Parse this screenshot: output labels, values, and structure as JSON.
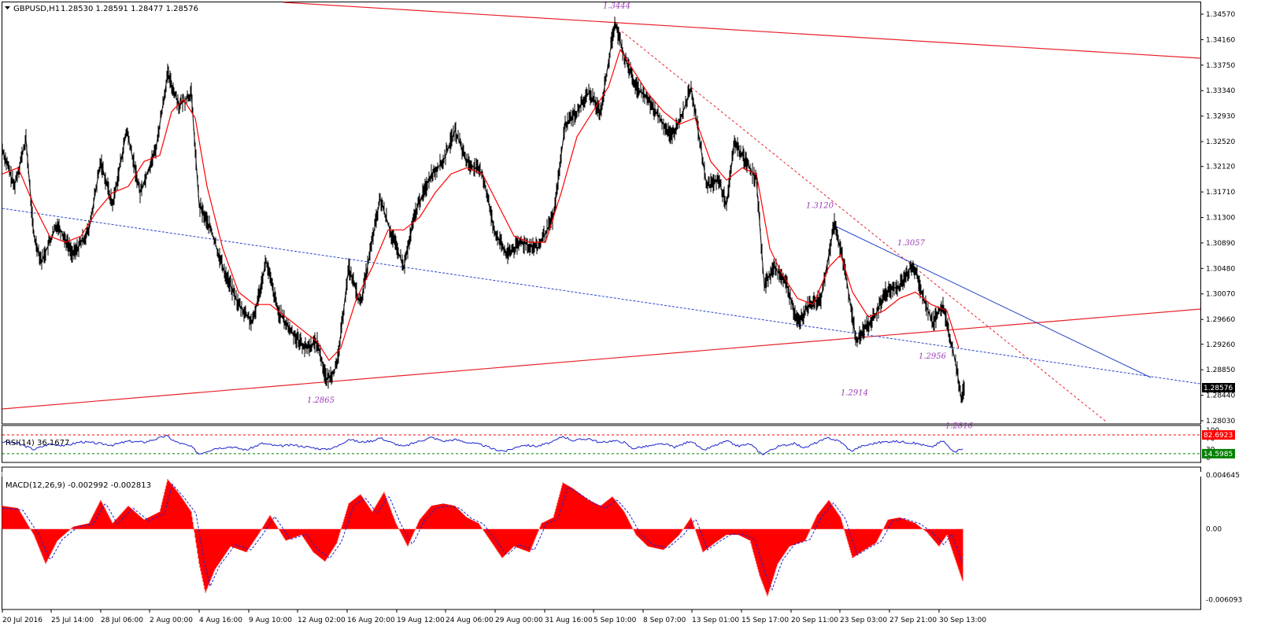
{
  "window": {
    "symbol_title": "GBPUSD,H1",
    "ohlc": "1.28530 1.28591 1.28477 1.28576",
    "price_badge": "1.28576"
  },
  "colors": {
    "background": "#ffffff",
    "price": "#000000",
    "ma": "#ff0000",
    "trend_red": "#e8202a",
    "trend_blue": "#2a46c8",
    "rsi_line": "#1c22d0",
    "annotation": "#9b3ab8",
    "macd_hist": "#ff0000",
    "macd_signal": "#1c22d0",
    "rsi_upper_level": "#ff0000",
    "rsi_lower_level": "#008000"
  },
  "chart_data": [
    {
      "type": "candlestick",
      "title": "GBPUSD,H1",
      "symbol": "GBPUSD",
      "timeframe": "H1",
      "ohlc_last": {
        "open": 1.2853,
        "high": 1.28591,
        "low": 1.28477,
        "close": 1.28576
      },
      "ylim": [
        1.28,
        1.3465
      ],
      "y_ticks": [
        "1.34570",
        "1.34160",
        "1.33750",
        "1.33340",
        "1.32930",
        "1.32520",
        "1.32120",
        "1.31710",
        "1.31300",
        "1.30890",
        "1.30480",
        "1.30070",
        "1.29660",
        "1.29260",
        "1.28850",
        "1.28440",
        "1.28030"
      ],
      "x_ticks": [
        "20 Jul 2016",
        "25 Jul 14:00",
        "28 Jul 06:00",
        "2 Aug 00:00",
        "4 Aug 16:00",
        "9 Aug 10:00",
        "12 Aug 02:00",
        "16 Aug 20:00",
        "19 Aug 12:00",
        "24 Aug 06:00",
        "29 Aug 00:00",
        "31 Aug 16:00",
        "5 Sep 10:00",
        "8 Sep 07:00",
        "13 Sep 01:00",
        "15 Sep 17:00",
        "20 Sep 11:00",
        "23 Sep 03:00",
        "27 Sep 21:00",
        "30 Sep 13:00"
      ],
      "price_path": [
        [
          0,
          1.324
        ],
        [
          15,
          1.318
        ],
        [
          30,
          1.3255
        ],
        [
          40,
          1.31
        ],
        [
          50,
          1.306
        ],
        [
          70,
          1.312
        ],
        [
          90,
          1.307
        ],
        [
          110,
          1.311
        ],
        [
          125,
          1.322
        ],
        [
          140,
          1.315
        ],
        [
          158,
          1.327
        ],
        [
          175,
          1.317
        ],
        [
          195,
          1.324
        ],
        [
          210,
          1.336
        ],
        [
          225,
          1.331
        ],
        [
          240,
          1.333
        ],
        [
          250,
          1.315
        ],
        [
          265,
          1.311
        ],
        [
          280,
          1.305
        ],
        [
          300,
          1.299
        ],
        [
          318,
          1.296
        ],
        [
          335,
          1.306
        ],
        [
          350,
          1.298
        ],
        [
          365,
          1.295
        ],
        [
          385,
          1.292
        ],
        [
          400,
          1.293
        ],
        [
          412,
          1.2868
        ],
        [
          425,
          1.289
        ],
        [
          440,
          1.305
        ],
        [
          455,
          1.299
        ],
        [
          468,
          1.308
        ],
        [
          480,
          1.316
        ],
        [
          495,
          1.31
        ],
        [
          510,
          1.305
        ],
        [
          525,
          1.314
        ],
        [
          545,
          1.32
        ],
        [
          560,
          1.322
        ],
        [
          575,
          1.327
        ],
        [
          590,
          1.322
        ],
        [
          610,
          1.32
        ],
        [
          625,
          1.311
        ],
        [
          640,
          1.307
        ],
        [
          660,
          1.309
        ],
        [
          680,
          1.308
        ],
        [
          700,
          1.313
        ],
        [
          715,
          1.328
        ],
        [
          730,
          1.33
        ],
        [
          745,
          1.333
        ],
        [
          760,
          1.33
        ],
        [
          770,
          1.338
        ],
        [
          778,
          1.3444
        ],
        [
          790,
          1.339
        ],
        [
          805,
          1.334
        ],
        [
          820,
          1.332
        ],
        [
          835,
          1.329
        ],
        [
          850,
          1.326
        ],
        [
          865,
          1.33
        ],
        [
          875,
          1.334
        ],
        [
          885,
          1.326
        ],
        [
          895,
          1.318
        ],
        [
          910,
          1.319
        ],
        [
          920,
          1.315
        ],
        [
          930,
          1.325
        ],
        [
          945,
          1.322
        ],
        [
          958,
          1.319
        ],
        [
          968,
          1.302
        ],
        [
          980,
          1.305
        ],
        [
          995,
          1.303
        ],
        [
          1010,
          1.296
        ],
        [
          1025,
          1.299
        ],
        [
          1040,
          1.3
        ],
        [
          1057,
          1.312
        ],
        [
          1070,
          1.305
        ],
        [
          1085,
          1.293
        ],
        [
          1095,
          1.295
        ],
        [
          1108,
          1.297
        ],
        [
          1122,
          1.301
        ],
        [
          1140,
          1.302
        ],
        [
          1157,
          1.3057
        ],
        [
          1170,
          1.3
        ],
        [
          1182,
          1.296
        ],
        [
          1195,
          1.299
        ],
        [
          1205,
          1.293
        ],
        [
          1212,
          1.289
        ],
        [
          1218,
          1.284
        ],
        [
          1222,
          1.2858
        ]
      ],
      "ma_path": [
        [
          0,
          1.32
        ],
        [
          20,
          1.321
        ],
        [
          40,
          1.315
        ],
        [
          60,
          1.31
        ],
        [
          80,
          1.309
        ],
        [
          100,
          1.31
        ],
        [
          120,
          1.314
        ],
        [
          140,
          1.317
        ],
        [
          160,
          1.318
        ],
        [
          180,
          1.322
        ],
        [
          200,
          1.323
        ],
        [
          215,
          1.33
        ],
        [
          230,
          1.332
        ],
        [
          245,
          1.329
        ],
        [
          260,
          1.318
        ],
        [
          280,
          1.308
        ],
        [
          300,
          1.301
        ],
        [
          320,
          1.299
        ],
        [
          340,
          1.299
        ],
        [
          360,
          1.297
        ],
        [
          380,
          1.295
        ],
        [
          400,
          1.293
        ],
        [
          415,
          1.29
        ],
        [
          430,
          1.292
        ],
        [
          450,
          1.3
        ],
        [
          470,
          1.305
        ],
        [
          490,
          1.311
        ],
        [
          510,
          1.311
        ],
        [
          530,
          1.313
        ],
        [
          550,
          1.317
        ],
        [
          570,
          1.32
        ],
        [
          590,
          1.321
        ],
        [
          610,
          1.32
        ],
        [
          630,
          1.315
        ],
        [
          650,
          1.31
        ],
        [
          670,
          1.309
        ],
        [
          690,
          1.309
        ],
        [
          710,
          1.317
        ],
        [
          730,
          1.326
        ],
        [
          750,
          1.33
        ],
        [
          770,
          1.334
        ],
        [
          785,
          1.34
        ],
        [
          800,
          1.337
        ],
        [
          820,
          1.333
        ],
        [
          840,
          1.33
        ],
        [
          860,
          1.328
        ],
        [
          880,
          1.329
        ],
        [
          900,
          1.322
        ],
        [
          920,
          1.319
        ],
        [
          940,
          1.321
        ],
        [
          958,
          1.32
        ],
        [
          975,
          1.308
        ],
        [
          990,
          1.304
        ],
        [
          1010,
          1.3
        ],
        [
          1030,
          1.299
        ],
        [
          1050,
          1.305
        ],
        [
          1065,
          1.307
        ],
        [
          1080,
          1.301
        ],
        [
          1100,
          1.297
        ],
        [
          1120,
          1.298
        ],
        [
          1140,
          1.3
        ],
        [
          1160,
          1.301
        ],
        [
          1180,
          1.299
        ],
        [
          1200,
          1.298
        ],
        [
          1215,
          1.292
        ]
      ],
      "annotations": [
        {
          "label": "1.3444",
          "x": 778,
          "y": 1.3444
        },
        {
          "label": "1.3120",
          "x": 1057,
          "y": 1.312
        },
        {
          "label": "1.3057",
          "x": 1157,
          "y": 1.3057
        },
        {
          "label": "1.2865",
          "x": 412,
          "y": 1.2865
        },
        {
          "label": "1.2914",
          "x": 1095,
          "y": 1.2914
        },
        {
          "label": "1.2956",
          "x": 1182,
          "y": 1.2956
        },
        {
          "label": "1.2816",
          "x": 1218,
          "y": 1.2816
        }
      ]
    },
    {
      "type": "line",
      "title": "RSI(14) 36.1677",
      "indicator": "RSI",
      "period": 14,
      "value": 36.1677,
      "ylim": [
        0,
        100
      ],
      "y_ticks": [
        "100",
        "70",
        "30",
        "0"
      ],
      "levels": {
        "upper": "82.6923",
        "lower": "14.5985"
      },
      "path": [
        [
          0,
          58
        ],
        [
          20,
          52
        ],
        [
          40,
          30
        ],
        [
          60,
          50
        ],
        [
          80,
          44
        ],
        [
          100,
          58
        ],
        [
          120,
          52
        ],
        [
          140,
          46
        ],
        [
          160,
          60
        ],
        [
          180,
          56
        ],
        [
          200,
          72
        ],
        [
          208,
          80
        ],
        [
          220,
          58
        ],
        [
          240,
          40
        ],
        [
          250,
          14
        ],
        [
          270,
          34
        ],
        [
          290,
          40
        ],
        [
          310,
          28
        ],
        [
          330,
          52
        ],
        [
          350,
          42
        ],
        [
          370,
          46
        ],
        [
          390,
          38
        ],
        [
          410,
          30
        ],
        [
          425,
          40
        ],
        [
          440,
          68
        ],
        [
          455,
          56
        ],
        [
          470,
          62
        ],
        [
          480,
          72
        ],
        [
          495,
          54
        ],
        [
          510,
          40
        ],
        [
          525,
          56
        ],
        [
          545,
          74
        ],
        [
          560,
          60
        ],
        [
          575,
          66
        ],
        [
          590,
          56
        ],
        [
          610,
          46
        ],
        [
          625,
          30
        ],
        [
          640,
          24
        ],
        [
          660,
          46
        ],
        [
          680,
          42
        ],
        [
          700,
          58
        ],
        [
          712,
          78
        ],
        [
          725,
          62
        ],
        [
          745,
          70
        ],
        [
          760,
          54
        ],
        [
          775,
          62
        ],
        [
          790,
          56
        ],
        [
          800,
          34
        ],
        [
          820,
          42
        ],
        [
          840,
          50
        ],
        [
          855,
          38
        ],
        [
          875,
          62
        ],
        [
          890,
          26
        ],
        [
          905,
          44
        ],
        [
          920,
          60
        ],
        [
          935,
          42
        ],
        [
          950,
          50
        ],
        [
          965,
          12
        ],
        [
          985,
          40
        ],
        [
          1005,
          52
        ],
        [
          1020,
          36
        ],
        [
          1035,
          56
        ],
        [
          1050,
          72
        ],
        [
          1065,
          58
        ],
        [
          1078,
          24
        ],
        [
          1090,
          40
        ],
        [
          1110,
          54
        ],
        [
          1130,
          60
        ],
        [
          1150,
          56
        ],
        [
          1165,
          50
        ],
        [
          1180,
          38
        ],
        [
          1195,
          62
        ],
        [
          1205,
          30
        ],
        [
          1213,
          22
        ],
        [
          1220,
          36
        ]
      ]
    },
    {
      "type": "bar",
      "title": "MACD(12,26,9) -0.002992 -0.002813",
      "indicator": "MACD",
      "params": [
        12,
        26,
        9
      ],
      "main": -0.002992,
      "signal": -0.002813,
      "ylim": [
        -0.0066,
        0.005
      ],
      "y_ticks": [
        "0.004645",
        "0.00",
        "-0.006093"
      ],
      "hist_path": [
        [
          0,
          0.002
        ],
        [
          20,
          0.0018
        ],
        [
          40,
          -0.0005
        ],
        [
          55,
          -0.003
        ],
        [
          70,
          -0.001
        ],
        [
          90,
          0.0002
        ],
        [
          110,
          0.0005
        ],
        [
          125,
          0.0025
        ],
        [
          140,
          0.0005
        ],
        [
          160,
          0.002
        ],
        [
          180,
          0.0008
        ],
        [
          200,
          0.0015
        ],
        [
          210,
          0.0043
        ],
        [
          225,
          0.003
        ],
        [
          240,
          0.0015
        ],
        [
          250,
          -0.003
        ],
        [
          258,
          -0.0055
        ],
        [
          270,
          -0.0035
        ],
        [
          290,
          -0.0015
        ],
        [
          310,
          -0.002
        ],
        [
          325,
          -0.0005
        ],
        [
          340,
          0.0012
        ],
        [
          360,
          -0.001
        ],
        [
          380,
          -0.0005
        ],
        [
          395,
          -0.002
        ],
        [
          410,
          -0.0028
        ],
        [
          425,
          -0.0012
        ],
        [
          440,
          0.0022
        ],
        [
          455,
          0.003
        ],
        [
          470,
          0.0015
        ],
        [
          485,
          0.0032
        ],
        [
          500,
          0.0005
        ],
        [
          515,
          -0.0015
        ],
        [
          530,
          0.0008
        ],
        [
          545,
          0.002
        ],
        [
          560,
          0.0022
        ],
        [
          575,
          0.002
        ],
        [
          590,
          0.001
        ],
        [
          605,
          0.0005
        ],
        [
          620,
          -0.001
        ],
        [
          635,
          -0.0025
        ],
        [
          650,
          -0.0015
        ],
        [
          670,
          -0.002
        ],
        [
          685,
          0.0005
        ],
        [
          700,
          0.001
        ],
        [
          712,
          0.004
        ],
        [
          725,
          0.0035
        ],
        [
          745,
          0.0025
        ],
        [
          760,
          0.002
        ],
        [
          775,
          0.0028
        ],
        [
          790,
          0.0015
        ],
        [
          805,
          -0.0005
        ],
        [
          820,
          -0.0015
        ],
        [
          840,
          -0.0018
        ],
        [
          860,
          -0.0005
        ],
        [
          875,
          0.001
        ],
        [
          890,
          -0.002
        ],
        [
          905,
          -0.0012
        ],
        [
          920,
          -0.0005
        ],
        [
          935,
          -0.0005
        ],
        [
          950,
          -0.001
        ],
        [
          962,
          -0.004
        ],
        [
          972,
          -0.0058
        ],
        [
          985,
          -0.003
        ],
        [
          1000,
          -0.0015
        ],
        [
          1020,
          -0.001
        ],
        [
          1035,
          0.0012
        ],
        [
          1050,
          0.0025
        ],
        [
          1065,
          0.001
        ],
        [
          1080,
          -0.0025
        ],
        [
          1095,
          -0.0018
        ],
        [
          1110,
          -0.0012
        ],
        [
          1125,
          0.0008
        ],
        [
          1140,
          0.001
        ],
        [
          1160,
          0.0005
        ],
        [
          1175,
          -0.0003
        ],
        [
          1190,
          -0.0015
        ],
        [
          1200,
          -0.0005
        ],
        [
          1210,
          -0.0025
        ],
        [
          1220,
          -0.0045
        ]
      ]
    }
  ]
}
